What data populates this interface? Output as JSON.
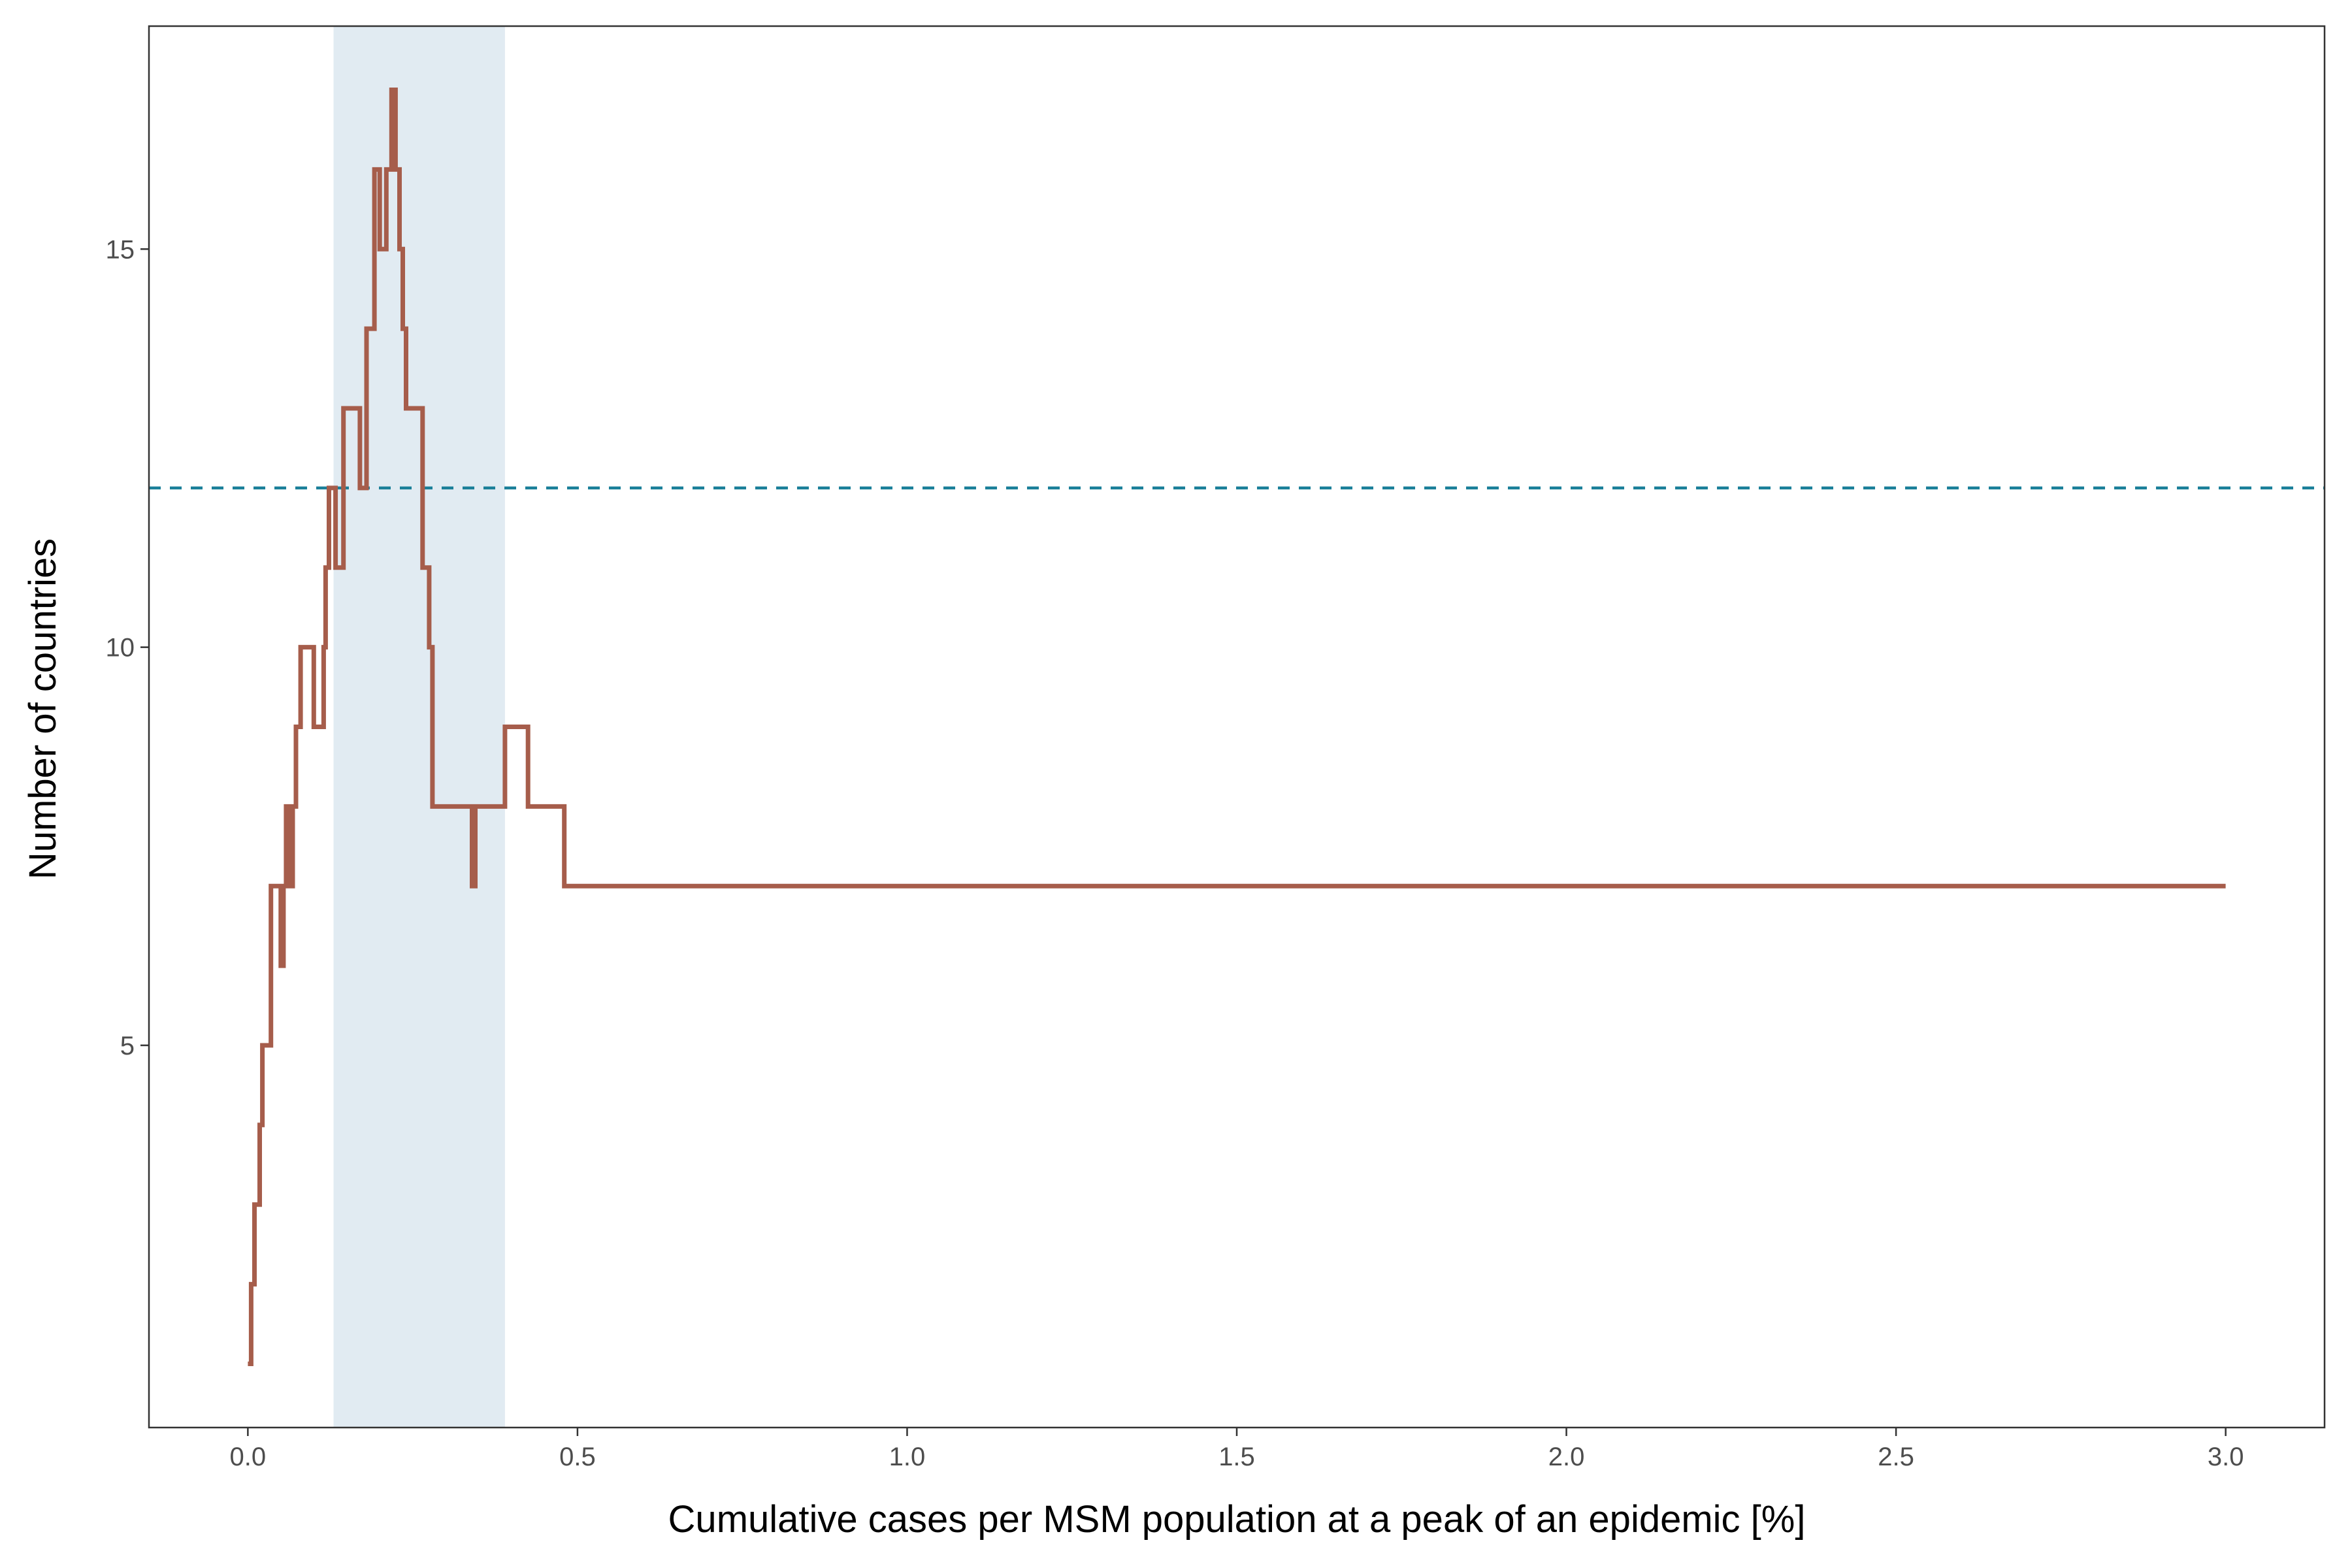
{
  "chart_data": {
    "type": "line",
    "xlabel": "Cumulative cases per MSM population at a peak of an epidemic [%]",
    "ylabel": "Number of countries",
    "xlim": [
      -0.15,
      3.15
    ],
    "ylim": [
      0.2,
      17.8
    ],
    "x_ticks": [
      0.0,
      0.5,
      1.0,
      1.5,
      2.0,
      2.5,
      3.0
    ],
    "x_tick_labels": [
      "0.0",
      "0.5",
      "1.0",
      "1.5",
      "2.0",
      "2.5",
      "3.0"
    ],
    "y_ticks": [
      5,
      10,
      15
    ],
    "y_tick_labels": [
      "5",
      "10",
      "15"
    ],
    "grid": false,
    "legend": "none",
    "shaded_band": {
      "x_start": 0.13,
      "x_end": 0.39,
      "color": "#e1ebf2"
    },
    "reference_line": {
      "y": 12,
      "style": "dashed",
      "color": "#1a7f99"
    },
    "series": [
      {
        "color": "#a65d4b",
        "step": true,
        "x": [
          0.0,
          0.005,
          0.01,
          0.018,
          0.022,
          0.035,
          0.05,
          0.054,
          0.058,
          0.063,
          0.068,
          0.073,
          0.08,
          0.1,
          0.115,
          0.118,
          0.123,
          0.133,
          0.145,
          0.17,
          0.18,
          0.192,
          0.2,
          0.21,
          0.218,
          0.224,
          0.23,
          0.235,
          0.24,
          0.265,
          0.275,
          0.28,
          0.34,
          0.345,
          0.39,
          0.425,
          0.48,
          0.53,
          0.715,
          0.845,
          1.42,
          1.63,
          3.0
        ],
        "y": [
          1,
          2,
          3,
          4,
          5,
          7,
          6,
          7,
          8,
          7,
          8,
          9,
          10,
          9,
          10,
          11,
          12,
          11,
          13,
          12,
          14,
          16,
          15,
          16,
          17,
          16,
          15,
          14,
          13,
          11,
          10,
          8,
          7,
          8,
          9,
          8,
          7,
          7,
          7,
          7,
          7,
          7,
          7
        ]
      }
    ]
  }
}
